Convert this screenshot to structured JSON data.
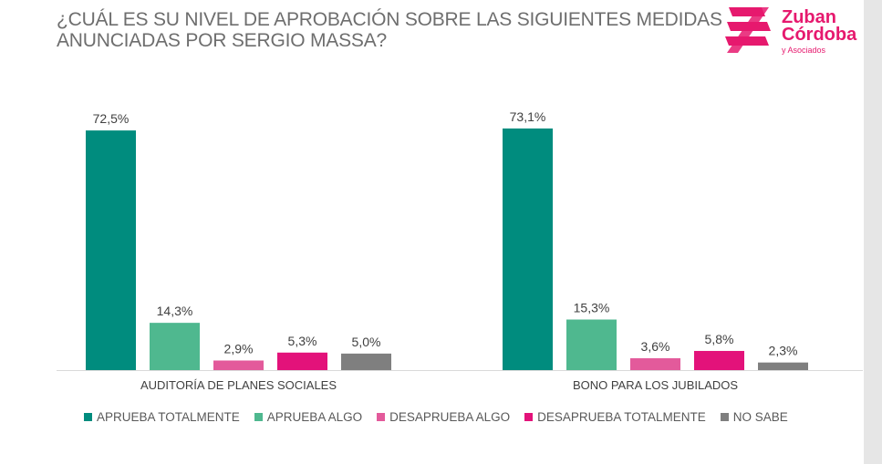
{
  "title_lines": [
    "¿CUÁL ES SU NIVEL DE APROBACIÓN SOBRE LAS SIGUIENTES MEDIDAS",
    "ANUNCIADAS POR SERGIO MASSA?"
  ],
  "logo": {
    "line1": "Zuban",
    "line2": "Córdoba",
    "sub": "y Asociados"
  },
  "chart_data": {
    "type": "bar",
    "categories": [
      "AUDITORÍA DE PLANES SOCIALES",
      "BONO PARA LOS JUBILADOS"
    ],
    "series": [
      {
        "name": "APRUEBA TOTALMENTE",
        "color": "#008c7e",
        "values": [
          72.5,
          73.1
        ],
        "labels": [
          "72,5%",
          "73,1%"
        ]
      },
      {
        "name": "APRUEBA ALGO",
        "color": "#4fb88f",
        "values": [
          14.3,
          15.3
        ],
        "labels": [
          "14,3%",
          "15,3%"
        ]
      },
      {
        "name": "DESAPRUEBA ALGO",
        "color": "#e35a9b",
        "values": [
          2.9,
          3.6
        ],
        "labels": [
          "2,9%",
          "3,6%"
        ]
      },
      {
        "name": "DESAPRUEBA TOTALMENTE",
        "color": "#e3127a",
        "values": [
          5.3,
          5.8
        ],
        "labels": [
          "5,3%",
          "5,8%"
        ]
      },
      {
        "name": "NO SABE",
        "color": "#7f7f7f",
        "values": [
          5.0,
          2.3
        ],
        "labels": [
          "5,0%",
          "2,3%"
        ]
      }
    ],
    "ylim": [
      0,
      80
    ],
    "grid": false,
    "legend_position": "bottom"
  }
}
